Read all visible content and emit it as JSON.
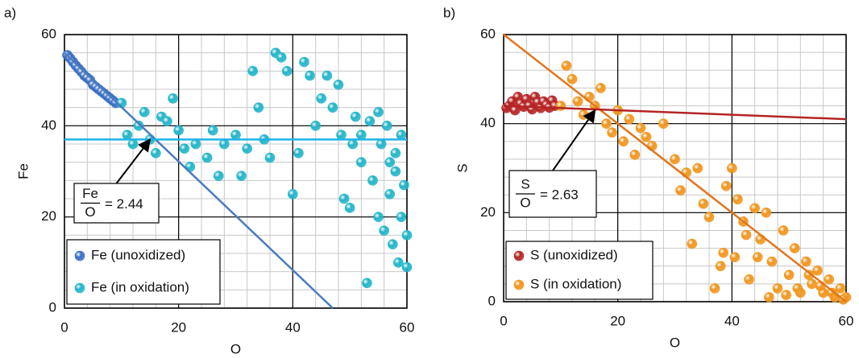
{
  "chart_data": [
    {
      "type": "scatter",
      "panel_label": "a)",
      "x_label": "O",
      "y_label": "Fe",
      "xlim": [
        0,
        60
      ],
      "ylim": [
        0,
        60
      ],
      "xticks": [
        0,
        20,
        40,
        60
      ],
      "yticks": [
        0,
        20,
        40,
        60
      ],
      "grid": true,
      "minor_grid_step": 4,
      "legend": "lower left",
      "series": [
        {
          "name": "Fe (unoxidized)",
          "color": "#3a6fc4",
          "x": [
            0.5,
            1,
            1.5,
            2,
            2.5,
            3,
            3.5,
            4,
            4.5,
            5,
            5.5,
            6,
            6.5,
            7,
            7.5,
            8,
            8.5,
            9
          ],
          "values": [
            55.5,
            54.8,
            54,
            53.2,
            52.5,
            51.8,
            51,
            50.5,
            50,
            49,
            48.5,
            48,
            47.5,
            47,
            46.5,
            46,
            45.5,
            45
          ]
        },
        {
          "name": "Fe (in oxidation)",
          "color": "#22b5c9",
          "x": [
            10,
            11,
            12,
            13,
            14,
            15,
            16,
            17,
            18,
            19,
            20,
            21,
            22,
            23,
            25,
            26,
            27,
            28,
            30,
            31,
            32,
            33,
            34,
            35,
            36,
            37,
            38,
            39,
            40,
            41,
            42,
            43,
            44,
            45,
            46,
            47,
            48,
            48.5,
            49,
            50,
            50.5,
            51,
            52,
            53,
            53.5,
            54,
            55,
            55.5,
            56,
            56.5,
            57,
            57.5,
            58,
            58.5,
            59,
            59.5,
            60,
            60,
            59,
            58,
            57,
            55,
            52
          ],
          "values": [
            45,
            38,
            36,
            40,
            43,
            37,
            34,
            42,
            41,
            46,
            39,
            35,
            31,
            36,
            33,
            39,
            29,
            36,
            38,
            29,
            35,
            52,
            44,
            37,
            33,
            56,
            55,
            52,
            25,
            34,
            54,
            51,
            40,
            46,
            51,
            44,
            49,
            38,
            24,
            22,
            36,
            42,
            32,
            5.5,
            41,
            28,
            20,
            36,
            17,
            40,
            25,
            14,
            34,
            10,
            20,
            27,
            9,
            16,
            38,
            30,
            32,
            43,
            38
          ]
        }
      ],
      "fit_lines": [
        {
          "color": "#4a7cc0",
          "x": [
            0,
            47
          ],
          "y": [
            56,
            0
          ]
        },
        {
          "color": "#1fb3e6",
          "x": [
            0,
            60
          ],
          "y": [
            37,
            37
          ]
        }
      ],
      "annotation": {
        "numerator": "Fe",
        "denominator": "O",
        "text": "= 2.44",
        "xy": [
          15,
          37
        ]
      }
    },
    {
      "type": "scatter",
      "panel_label": "b)",
      "x_label": "O",
      "y_label": "S",
      "xlim": [
        0,
        60
      ],
      "ylim": [
        0,
        60
      ],
      "xticks": [
        0,
        20,
        40,
        60
      ],
      "yticks": [
        0,
        20,
        40,
        60
      ],
      "grid": true,
      "minor_grid_step": 4,
      "legend": "lower left",
      "series": [
        {
          "name": "S (unoxidized)",
          "color": "#b52424",
          "x": [
            0.5,
            1,
            1.5,
            2,
            2.5,
            3,
            3.5,
            4,
            4.5,
            5,
            5.5,
            6,
            6.5,
            7,
            7.5,
            8,
            8.5,
            9
          ],
          "values": [
            43.5,
            44,
            45,
            43,
            46,
            44.5,
            43.8,
            45.5,
            44,
            43.2,
            46,
            44.8,
            43.5,
            45,
            44.2,
            43.6,
            45.2,
            44
          ]
        },
        {
          "name": "S (in oxidation)",
          "color": "#f0961e",
          "x": [
            10,
            11,
            12,
            13,
            14,
            15,
            16,
            17,
            18,
            19,
            20,
            21,
            22,
            23,
            24,
            25,
            26,
            28,
            30,
            31,
            32,
            33,
            34,
            35,
            36,
            37,
            38,
            39,
            40,
            40.5,
            41,
            42,
            43,
            44,
            45,
            46,
            47,
            48,
            49,
            50,
            51,
            52,
            53,
            54,
            55,
            56,
            57,
            58,
            59,
            60,
            59.5,
            57.5,
            55.5,
            53.5,
            51.5,
            49.5,
            46.5,
            44.5,
            42.5,
            38.5
          ],
          "values": [
            44,
            53,
            50,
            45,
            42,
            46,
            44,
            48,
            40,
            38,
            43,
            36,
            41,
            33,
            39,
            37,
            35,
            40,
            32,
            25,
            29,
            13,
            30,
            22,
            19,
            3,
            8,
            26,
            30,
            10,
            23,
            18,
            5,
            21,
            14,
            20,
            9,
            3,
            16,
            6,
            12,
            2,
            9,
            4,
            7,
            2,
            5,
            1,
            3,
            1,
            0.5,
            2,
            3.5,
            6,
            3,
            1.5,
            1,
            10,
            15,
            11
          ]
        }
      ],
      "fit_lines": [
        {
          "color": "#e2761c",
          "x": [
            0,
            60
          ],
          "y": [
            60,
            0
          ]
        },
        {
          "color": "#b52424",
          "x": [
            0,
            60
          ],
          "y": [
            44,
            41
          ]
        }
      ],
      "annotation": {
        "numerator": "S",
        "denominator": "O",
        "text": "= 2.63",
        "xy": [
          16,
          43
        ]
      }
    }
  ]
}
